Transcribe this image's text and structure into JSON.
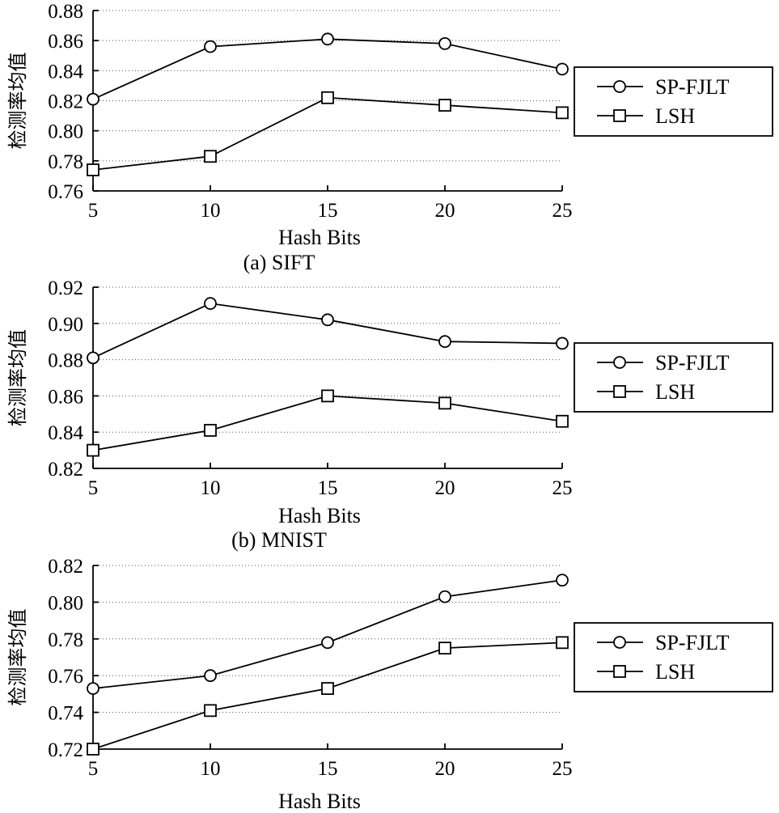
{
  "chart_data": [
    {
      "type": "line",
      "caption": "(a) SIFT",
      "xlabel": "Hash Bits",
      "ylabel": "检测率均值",
      "x": [
        5,
        10,
        15,
        20,
        25
      ],
      "ylim": [
        0.76,
        0.88
      ],
      "yticks": [
        "0.76",
        "0.78",
        "0.80",
        "0.82",
        "0.84",
        "0.86",
        "0.88"
      ],
      "grid": true,
      "legend_position": "right",
      "series": [
        {
          "name": "SP-FJLT",
          "marker": "circle",
          "values": [
            0.821,
            0.856,
            0.861,
            0.858,
            0.841
          ]
        },
        {
          "name": "LSH",
          "marker": "square",
          "values": [
            0.774,
            0.783,
            0.822,
            0.817,
            0.812
          ]
        }
      ]
    },
    {
      "type": "line",
      "caption": "(b) MNIST",
      "xlabel": "Hash Bits",
      "ylabel": "检测率均值",
      "x": [
        5,
        10,
        15,
        20,
        25
      ],
      "ylim": [
        0.82,
        0.92
      ],
      "yticks": [
        "0.82",
        "0.84",
        "0.86",
        "0.88",
        "0.90",
        "0.92"
      ],
      "grid": true,
      "legend_position": "right",
      "series": [
        {
          "name": "SP-FJLT",
          "marker": "circle",
          "values": [
            0.881,
            0.911,
            0.902,
            0.89,
            0.889
          ]
        },
        {
          "name": "LSH",
          "marker": "square",
          "values": [
            0.83,
            0.841,
            0.86,
            0.856,
            0.846
          ]
        }
      ]
    },
    {
      "type": "line",
      "caption": "",
      "xlabel": "Hash Bits",
      "ylabel": "检测率均值",
      "x": [
        5,
        10,
        15,
        20,
        25
      ],
      "ylim": [
        0.72,
        0.82
      ],
      "yticks": [
        "0.72",
        "0.74",
        "0.76",
        "0.78",
        "0.80",
        "0.82"
      ],
      "grid": true,
      "legend_position": "right",
      "series": [
        {
          "name": "SP-FJLT",
          "marker": "circle",
          "values": [
            0.753,
            0.76,
            0.778,
            0.803,
            0.812
          ]
        },
        {
          "name": "LSH",
          "marker": "square",
          "values": [
            0.72,
            0.741,
            0.753,
            0.775,
            0.778
          ]
        }
      ]
    }
  ]
}
